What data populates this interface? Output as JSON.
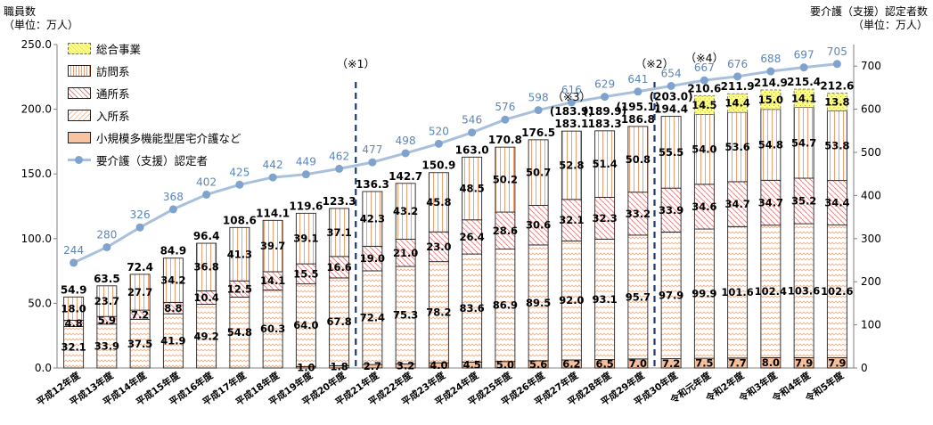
{
  "chart_data": {
    "type": "bar",
    "stacked": true,
    "left_axis_title": [
      "職員数",
      "（単位：万人）"
    ],
    "right_axis_title": [
      "要介護（支援）認定者数",
      "（単位：万人）"
    ],
    "ylim": [
      0,
      250
    ],
    "yticks": [
      "0.0",
      "50.0",
      "100.0",
      "150.0",
      "200.0",
      "250.0"
    ],
    "ylim_right": [
      0,
      750
    ],
    "yticks_right": [
      "0",
      "100",
      "200",
      "300",
      "400",
      "500",
      "600",
      "700"
    ],
    "categories": [
      "平成12年度",
      "平成13年度",
      "平成14年度",
      "平成15年度",
      "平成16年度",
      "平成17年度",
      "平成18年度",
      "平成19年度",
      "平成20年度",
      "平成21年度",
      "平成22年度",
      "平成23年度",
      "平成24年度",
      "平成25年度",
      "平成26年度",
      "平成27年度",
      "平成28年度",
      "平成29年度",
      "平成30年度",
      "令和元年度",
      "令和2年度",
      "令和3年度",
      "令和4年度",
      "令和5年度"
    ],
    "series": [
      {
        "name": "小規模多機能型居宅介護など",
        "color": "#f4b183",
        "values": [
          null,
          null,
          null,
          null,
          null,
          null,
          null,
          1.0,
          1.8,
          2.7,
          3.2,
          4.0,
          4.5,
          5.0,
          5.6,
          6.2,
          6.5,
          7.0,
          7.2,
          7.5,
          7.7,
          8.0,
          7.9,
          7.9
        ],
        "labels": [
          "",
          "",
          "",
          "",
          "",
          "",
          "",
          "1.0",
          "1.8",
          "2.7",
          "3.2",
          "4.0",
          "4.5",
          "5.0",
          "5.6",
          "6.2",
          "6.5",
          "7.0",
          "7.2",
          "7.5",
          "7.7",
          "8.0",
          "7.9",
          "7.9"
        ]
      },
      {
        "name": "入所系",
        "color": "#f8cbad",
        "values": [
          32.1,
          33.9,
          37.5,
          41.9,
          49.2,
          54.8,
          60.3,
          64.0,
          67.8,
          72.4,
          75.3,
          78.2,
          83.6,
          86.9,
          89.5,
          92.0,
          93.1,
          95.7,
          97.9,
          99.9,
          101.6,
          102.4,
          103.6,
          102.6
        ],
        "labels": [
          "32.1",
          "33.9",
          "37.5",
          "41.9",
          "49.2",
          "54.8",
          "60.3",
          "64.0",
          "67.8",
          "72.4",
          "75.3",
          "78.2",
          "83.6",
          "86.9",
          "89.5",
          "92.0",
          "93.1",
          "95.7",
          "97.9",
          "99.9",
          "101.6",
          "102.4",
          "103.6",
          "102.6"
        ]
      },
      {
        "name": "通所系",
        "color": "#e6a0a0",
        "values": [
          4.8,
          5.9,
          7.2,
          8.8,
          10.4,
          12.5,
          14.1,
          15.5,
          16.6,
          19.0,
          21.0,
          23.0,
          26.4,
          28.6,
          30.6,
          32.1,
          32.3,
          33.2,
          33.9,
          34.6,
          34.7,
          34.7,
          35.2,
          34.4
        ],
        "labels": [
          "4.8",
          "5.9",
          "7.2",
          "8.8",
          "10.4",
          "12.5",
          "14.1",
          "15.5",
          "16.6",
          "19.0",
          "21.0",
          "23.0",
          "26.4",
          "28.6",
          "30.6",
          "32.1",
          "32.3",
          "33.2",
          "33.9",
          "34.6",
          "34.7",
          "34.7",
          "35.2",
          "34.4"
        ]
      },
      {
        "name": "訪問系",
        "color": "#f4b183",
        "values": [
          18.0,
          23.7,
          27.7,
          34.2,
          36.8,
          41.3,
          39.7,
          39.1,
          37.1,
          42.3,
          43.2,
          45.8,
          48.5,
          50.2,
          50.7,
          52.8,
          51.4,
          50.8,
          55.5,
          54.0,
          53.6,
          54.8,
          54.7,
          53.8
        ],
        "labels": [
          "18.0",
          "23.7",
          "27.7",
          "34.2",
          "36.8",
          "41.3",
          "39.7",
          "39.1",
          "37.1",
          "42.3",
          "43.2",
          "45.8",
          "48.5",
          "50.2",
          "50.7",
          "52.8",
          "51.4",
          "50.8",
          "55.5",
          "54.0",
          "53.6",
          "54.8",
          "54.7",
          "53.8"
        ]
      },
      {
        "name": "総合事業",
        "color": "#ffff99",
        "values": [
          null,
          null,
          null,
          null,
          null,
          null,
          null,
          null,
          null,
          null,
          null,
          null,
          null,
          null,
          null,
          null,
          null,
          null,
          null,
          14.5,
          14.4,
          15.0,
          14.1,
          13.8
        ],
        "labels": [
          "",
          "",
          "",
          "",
          "",
          "",
          "",
          "",
          "",
          "",
          "",
          "",
          "",
          "",
          "",
          "",
          "",
          "",
          "",
          "14.5",
          "14.4",
          "15.0",
          "14.1",
          "13.8"
        ]
      }
    ],
    "totals": [
      "54.9",
      "63.5",
      "72.4",
      "84.9",
      "96.4",
      "108.6",
      "114.1",
      "119.6",
      "123.3",
      "136.3",
      "142.7",
      "150.9",
      "163.0",
      "170.8",
      "176.5",
      "183.1",
      "183.3",
      "186.8",
      "194.4",
      "210.6",
      "211.9",
      "214.9",
      "215.4",
      "212.6"
    ],
    "totals_paren": {
      "15": "(183.9)",
      "16": "(189.9)",
      "17": "(195.1)",
      "18": "(203.0)"
    },
    "line_series": {
      "name": "要介護（支援）認定者",
      "color": "#a8c0dc",
      "axis": "right",
      "values": [
        244,
        280,
        326,
        368,
        402,
        425,
        442,
        449,
        462,
        477,
        498,
        520,
        546,
        576,
        598,
        616,
        629,
        641,
        654,
        667,
        676,
        688,
        697,
        705
      ],
      "labels": [
        "244",
        "280",
        "326",
        "368",
        "402",
        "425",
        "442",
        "449",
        "462",
        "477",
        "498",
        "520",
        "546",
        "576",
        "598",
        "616",
        "629",
        "641",
        "654",
        "667",
        "676",
        "688",
        "697",
        "705"
      ]
    },
    "annotations": [
      {
        "text": "（※1）",
        "after_index": 8
      },
      {
        "text": "（※2）",
        "after_index": 17
      },
      {
        "text": "（※3）",
        "at_index": 15
      },
      {
        "text": "（※4）",
        "at_index": 19
      }
    ],
    "legend": [
      "総合事業",
      "訪問系",
      "通所系",
      "入所系",
      "小規模多機能型居宅介護など",
      "要介護（支援）認定者"
    ],
    "legend_position": "top-left"
  }
}
